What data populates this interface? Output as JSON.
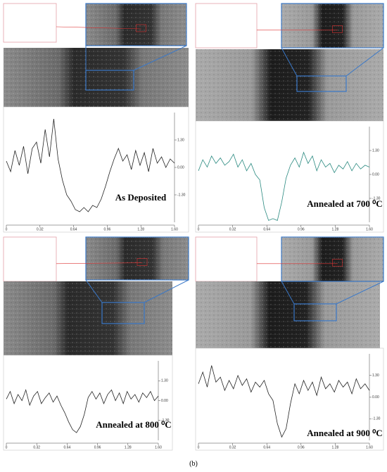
{
  "panels": [
    {
      "label": "As Deposited",
      "line_color": "#222222",
      "ylim": [
        -2.6,
        2.6
      ],
      "yticks": [
        {
          "value": 1.3,
          "label": "1.30"
        },
        {
          "value": 0,
          "label": "0.00"
        },
        {
          "value": -1.3,
          "label": "-1.30"
        }
      ],
      "xticks": [
        "0",
        "0.32",
        "0.64",
        "0.96",
        "1.28",
        "1.60"
      ],
      "profile": [
        0.3,
        -0.2,
        0.8,
        0.1,
        1.0,
        -0.3,
        0.9,
        1.2,
        0.2,
        1.8,
        0.5,
        2.3,
        0.4,
        -0.6,
        -1.3,
        -1.6,
        -2.0,
        -2.1,
        -1.9,
        -2.1,
        -1.8,
        -1.9,
        -1.5,
        -0.9,
        -0.2,
        0.4,
        0.9,
        0.3,
        0.6,
        -0.1,
        0.8,
        0.1,
        0.7,
        -0.2,
        0.9,
        0.2,
        0.5,
        0.0,
        0.4,
        0.2
      ]
    },
    {
      "label": "Annealed at 700 ⁰C",
      "line_color": "#2a8a80",
      "ylim": [
        -2.6,
        2.6
      ],
      "yticks": [
        {
          "value": 1.3,
          "label": "1.30"
        },
        {
          "value": 0,
          "label": "0.00"
        },
        {
          "value": -1.3,
          "label": "-1.30"
        }
      ],
      "xticks": [
        "0",
        "0.32",
        "0.64",
        "0.96",
        "1.28",
        "1.60"
      ],
      "profile": [
        0.2,
        0.8,
        0.4,
        1.0,
        0.6,
        0.9,
        0.5,
        0.7,
        1.1,
        0.4,
        0.8,
        0.2,
        0.6,
        0.0,
        -0.3,
        -1.8,
        -2.5,
        -2.4,
        -2.5,
        -1.5,
        -0.2,
        0.5,
        0.9,
        0.4,
        1.2,
        0.6,
        1.0,
        0.2,
        0.8,
        0.4,
        0.6,
        0.1,
        0.5,
        0.3,
        0.7,
        0.2,
        0.6,
        0.3,
        0.5,
        0.4
      ]
    },
    {
      "label": "Annealed at 800 ⁰C",
      "line_color": "#222222",
      "ylim": [
        -2.6,
        2.6
      ],
      "yticks": [
        {
          "value": 1.3,
          "label": "1.30"
        },
        {
          "value": 0,
          "label": "0.00"
        },
        {
          "value": -1.3,
          "label": "-1.30"
        }
      ],
      "xticks": [
        "0",
        "0.32",
        "0.64",
        "0.96",
        "1.28",
        "1.60"
      ],
      "profile": [
        0.1,
        0.6,
        -0.2,
        0.4,
        0.0,
        0.7,
        -0.3,
        0.3,
        0.6,
        -0.2,
        0.2,
        0.5,
        -0.1,
        0.3,
        -0.3,
        -0.8,
        -1.4,
        -1.9,
        -2.1,
        -1.7,
        -0.9,
        0.2,
        0.6,
        0.1,
        0.5,
        -0.2,
        0.4,
        0.7,
        0.0,
        0.5,
        -0.2,
        0.6,
        0.1,
        0.4,
        -0.1,
        0.5,
        0.2,
        0.6,
        0.0,
        0.3
      ]
    },
    {
      "label": "Annealed at 900 ⁰C",
      "line_color": "#222222",
      "ylim": [
        -2.6,
        2.6
      ],
      "yticks": [
        {
          "value": 1.3,
          "label": "1.30"
        },
        {
          "value": 0,
          "label": "0.00"
        },
        {
          "value": -1.3,
          "label": "-1.30"
        }
      ],
      "xticks": [
        "0",
        "0.32",
        "0.64",
        "0.96",
        "1.28",
        "1.60"
      ],
      "profile": [
        0.8,
        1.5,
        0.6,
        1.9,
        0.9,
        1.2,
        0.4,
        1.0,
        0.5,
        1.3,
        0.7,
        1.1,
        0.3,
        0.9,
        0.6,
        1.0,
        0.2,
        -0.2,
        -1.6,
        -2.4,
        -1.9,
        -0.4,
        0.8,
        0.2,
        1.0,
        0.4,
        0.9,
        0.1,
        1.2,
        0.5,
        0.8,
        0.3,
        1.0,
        0.6,
        0.9,
        0.2,
        1.1,
        0.5,
        0.8,
        0.4
      ]
    }
  ],
  "caption": "(b)"
}
